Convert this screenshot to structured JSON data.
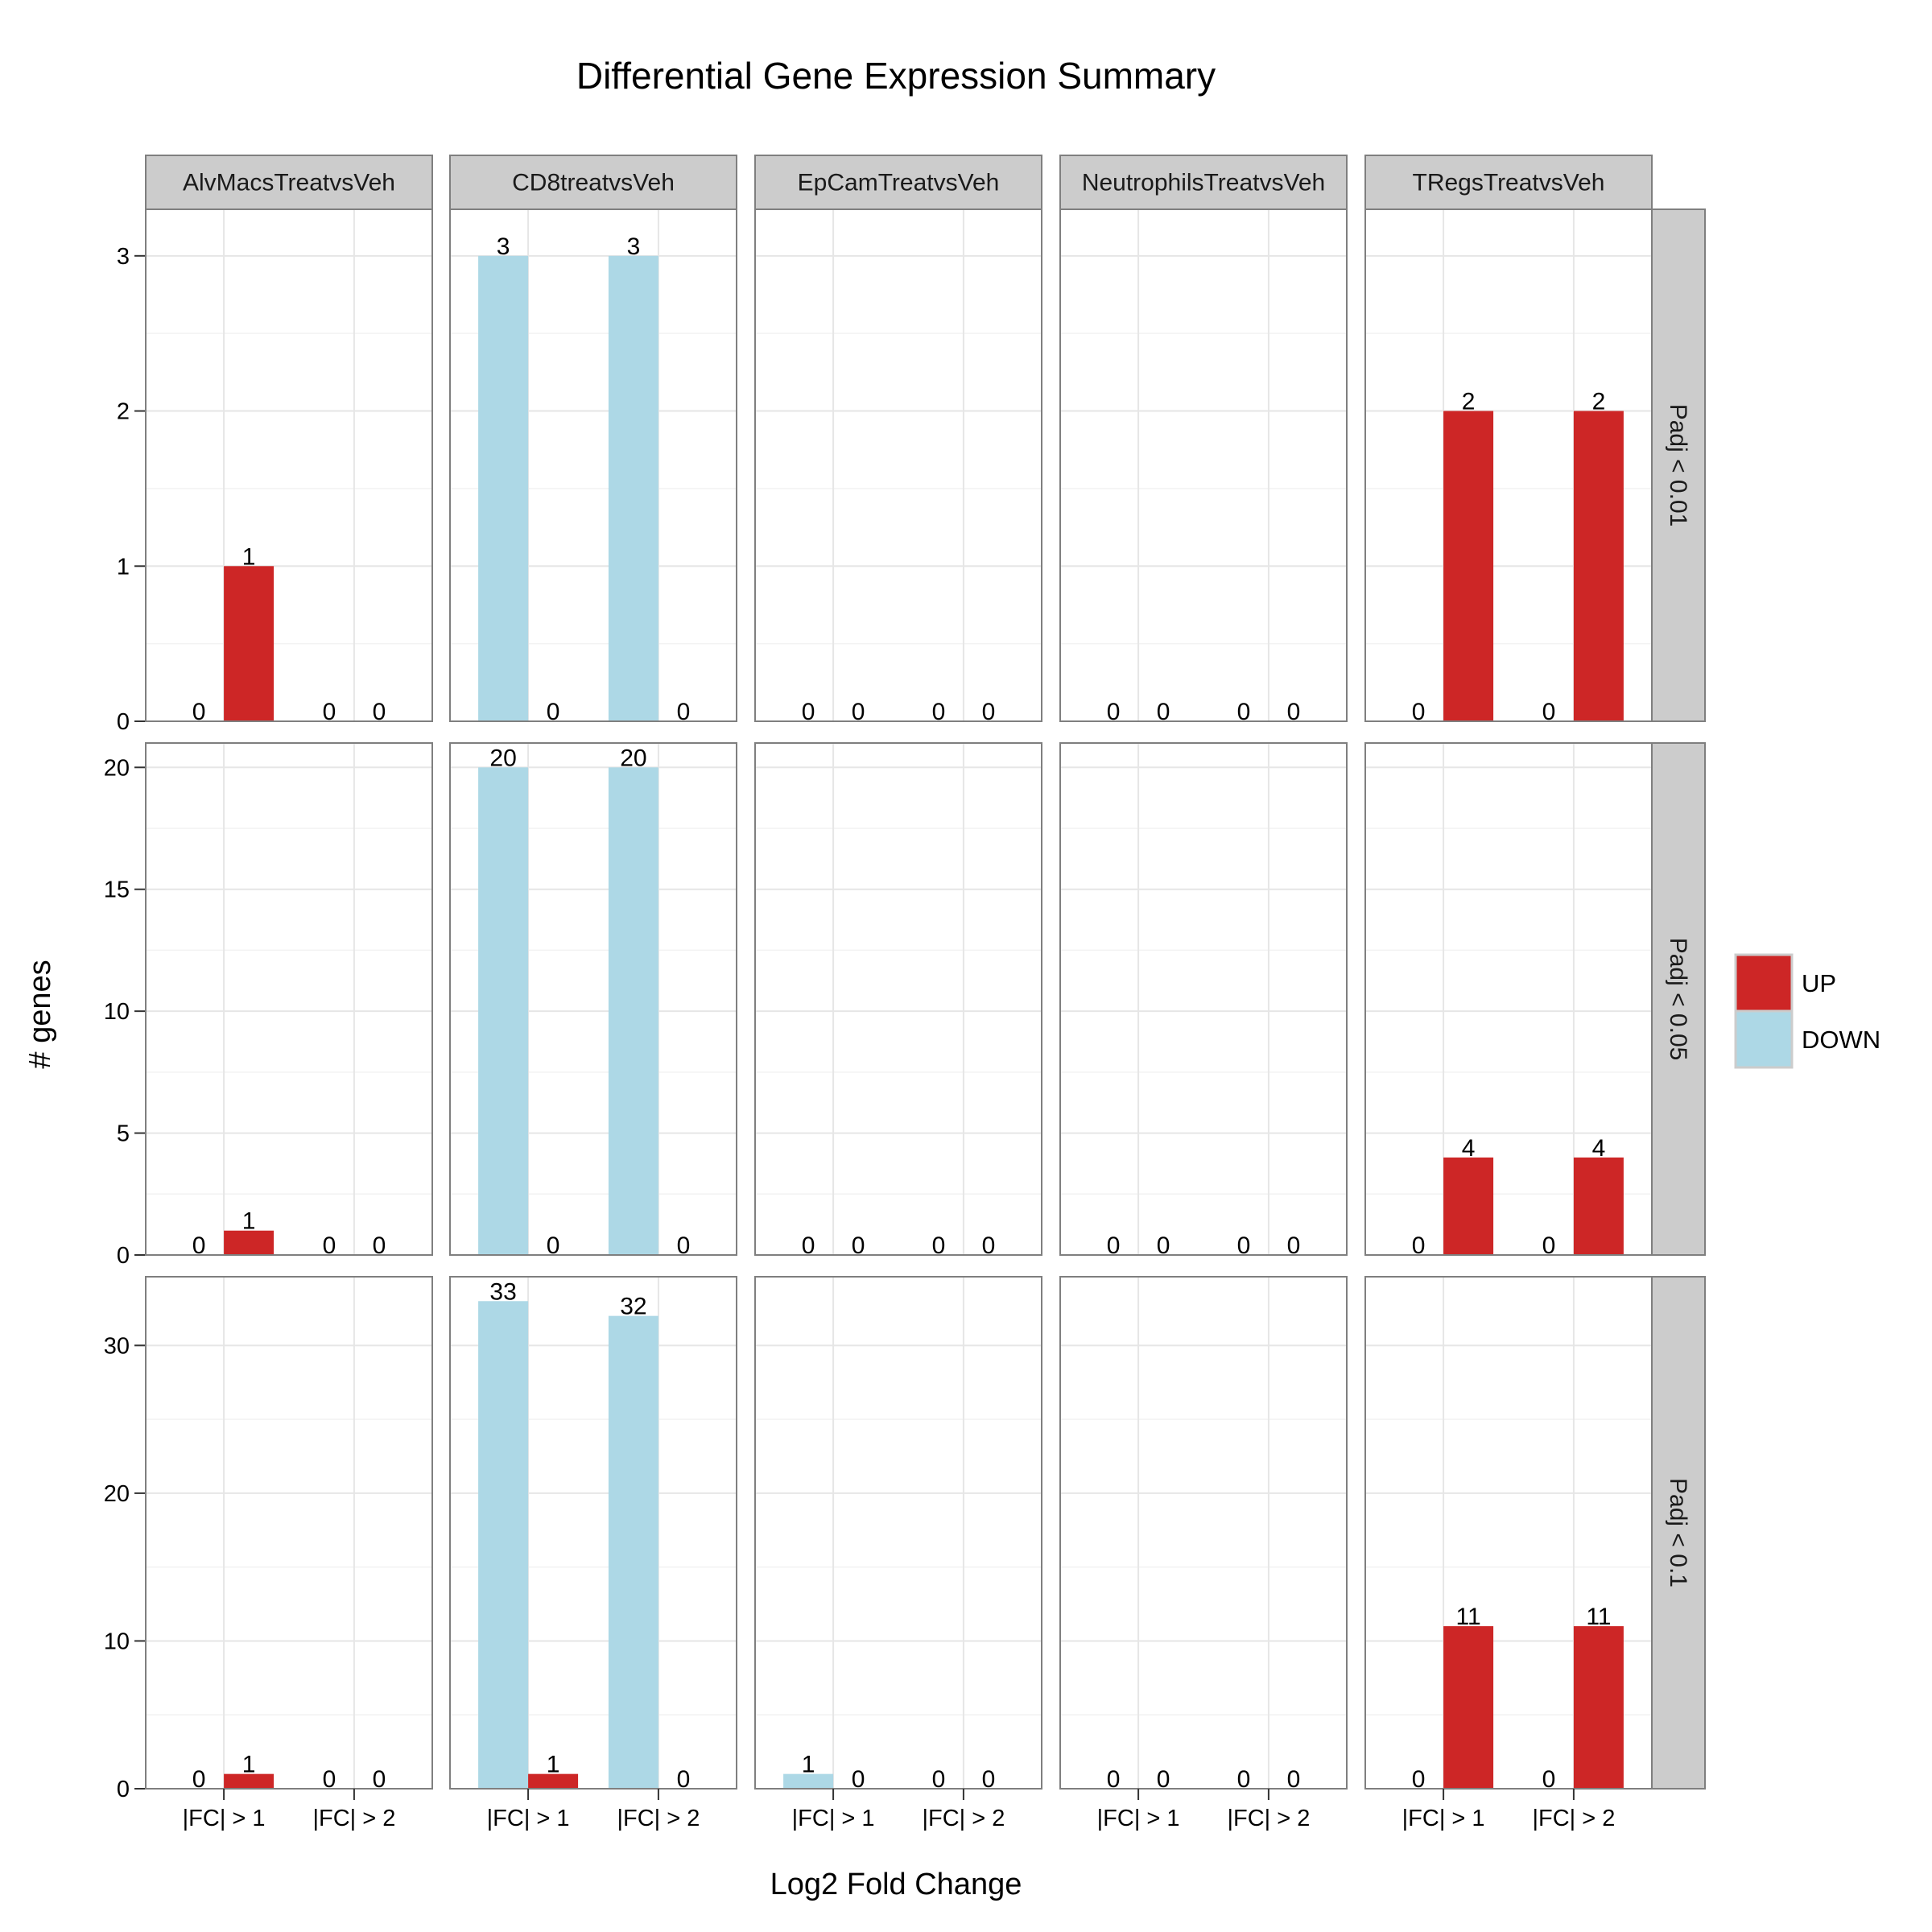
{
  "chart_data": {
    "type": "bar",
    "title": "Differential Gene Expression Summary",
    "xlabel": "Log2 Fold Change",
    "ylabel": "# genes",
    "categories": [
      "|FC| > 1",
      "|FC| > 2"
    ],
    "columns": [
      "AlvMacsTreatvsVeh",
      "CD8treatvsVeh",
      "EpCamTreatvsVeh",
      "NeutrophilsTreatvsVeh",
      "TRegsTreatvsVeh"
    ],
    "legend": {
      "placement": "right",
      "entries": [
        {
          "name": "UP",
          "color": "#CD2626"
        },
        {
          "name": "DOWN",
          "color": "#ADD8E6"
        }
      ]
    },
    "colors": {
      "UP": "#CD2626",
      "DOWN": "#ADD8E6",
      "strip": "#CCCCCC",
      "grid_major": "#E6E6E6",
      "grid_minor": "#F2F2F2",
      "panel_border": "#7F7F7F"
    },
    "grid": true,
    "rows": [
      {
        "label": "Padj < 0.01",
        "ylim": [
          0,
          3.3
        ],
        "ticks": [
          0,
          1,
          2,
          3
        ],
        "panels": [
          {
            "DOWN": [
              0,
              0
            ],
            "UP": [
              1,
              0
            ]
          },
          {
            "DOWN": [
              3,
              3
            ],
            "UP": [
              0,
              0
            ]
          },
          {
            "DOWN": [
              0,
              0
            ],
            "UP": [
              0,
              0
            ]
          },
          {
            "DOWN": [
              0,
              0
            ],
            "UP": [
              0,
              0
            ]
          },
          {
            "DOWN": [
              0,
              0
            ],
            "UP": [
              2,
              2
            ]
          }
        ]
      },
      {
        "label": "Padj < 0.05",
        "ylim": [
          0,
          21
        ],
        "ticks": [
          0,
          5,
          10,
          15,
          20
        ],
        "panels": [
          {
            "DOWN": [
              0,
              0
            ],
            "UP": [
              1,
              0
            ]
          },
          {
            "DOWN": [
              20,
              20
            ],
            "UP": [
              0,
              0
            ]
          },
          {
            "DOWN": [
              0,
              0
            ],
            "UP": [
              0,
              0
            ]
          },
          {
            "DOWN": [
              0,
              0
            ],
            "UP": [
              0,
              0
            ]
          },
          {
            "DOWN": [
              0,
              0
            ],
            "UP": [
              4,
              4
            ]
          }
        ]
      },
      {
        "label": "Padj < 0.1",
        "ylim": [
          0,
          34.65
        ],
        "ticks": [
          0,
          10,
          20,
          30
        ],
        "panels": [
          {
            "DOWN": [
              0,
              0
            ],
            "UP": [
              1,
              0
            ]
          },
          {
            "DOWN": [
              33,
              32
            ],
            "UP": [
              1,
              0
            ]
          },
          {
            "DOWN": [
              1,
              0
            ],
            "UP": [
              0,
              0
            ]
          },
          {
            "DOWN": [
              0,
              0
            ],
            "UP": [
              0,
              0
            ]
          },
          {
            "DOWN": [
              0,
              0
            ],
            "UP": [
              11,
              11
            ]
          }
        ]
      }
    ]
  }
}
